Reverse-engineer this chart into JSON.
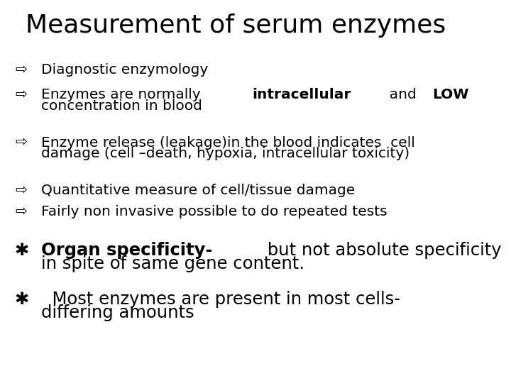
{
  "title": "Measurement of serum enzymes",
  "background_color": "#ffffff",
  "text_color": "#000000",
  "title_fontsize": 26,
  "body_fontsize": 14.5,
  "star_fontsize": 17.5,
  "bullet_arrow": "⇨",
  "bullet_star": "✱",
  "bullets": [
    {
      "type": "arrow",
      "indent2": false,
      "segments": [
        [
          "Diagnostic enzymology",
          false
        ]
      ]
    },
    {
      "type": "arrow",
      "indent2": true,
      "segments": [
        [
          "Enzymes are normally ",
          false
        ],
        [
          "intracellular",
          true
        ],
        [
          "  and ",
          false
        ],
        [
          "LOW",
          true
        ],
        [
          "\nconcentration in blood",
          false
        ]
      ]
    },
    {
      "type": "arrow",
      "indent2": true,
      "segments": [
        [
          "Enzyme release (leakage)in the blood indicates  cell\ndamage (cell –death, hypoxia, intracellular toxicity)",
          false
        ]
      ]
    },
    {
      "type": "arrow",
      "indent2": false,
      "segments": [
        [
          "Quantitative measure of cell/tissue damage",
          false
        ]
      ]
    },
    {
      "type": "arrow",
      "indent2": false,
      "segments": [
        [
          "Fairly non invasive possible to do repeated tests",
          false
        ]
      ]
    },
    {
      "type": "star",
      "indent2": true,
      "segments": [
        [
          "Organ specificity-",
          true
        ],
        [
          " but not absolute specificity\nin spite of same gene content.",
          false
        ]
      ]
    },
    {
      "type": "star",
      "indent2": true,
      "segments": [
        [
          "  Most enzymes are present in most cells-\ndiffering amounts",
          false
        ]
      ]
    }
  ]
}
